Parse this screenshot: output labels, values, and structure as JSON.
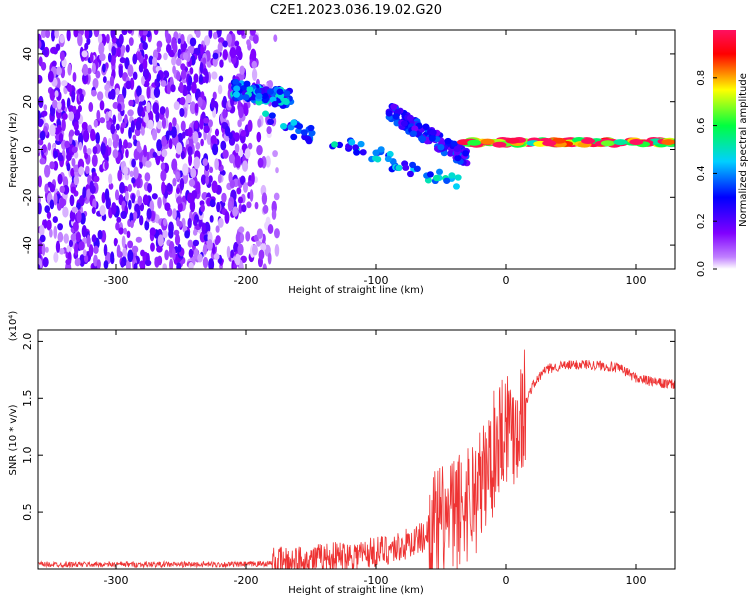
{
  "figure_title": "C2E1.2023.036.19.02.G20",
  "chart_data": [
    {
      "type": "heatmap",
      "title": "C2E1.2023.036.19.02.G20",
      "xlabel": "Height of straight line (km)",
      "ylabel": "Frequency (Hz)",
      "xlim": [
        -360,
        130
      ],
      "ylim": [
        -50,
        50
      ],
      "x_ticks": [
        -300,
        -200,
        -100,
        0,
        100
      ],
      "y_ticks": [
        -40,
        -20,
        0,
        20,
        40
      ],
      "colorbar": {
        "label": "Normalized spectral amplitude",
        "range": [
          0.0,
          1.0
        ],
        "ticks": [
          0.0,
          0.2,
          0.4,
          0.6,
          0.8
        ],
        "colors": [
          "#ffffff",
          "#8000ff",
          "#0000ff",
          "#00e0ff",
          "#00ff40",
          "#ffff00",
          "#ff0000",
          "#ff1060"
        ]
      },
      "features": [
        {
          "x_range": [
            -360,
            -175
          ],
          "frequency_range": [
            -50,
            50
          ],
          "amplitude": 0.1
        },
        {
          "x": [
            -210,
            -165
          ],
          "frequency": [
            25,
            21
          ],
          "amplitude": 0.35
        },
        {
          "x": [
            -185,
            -35
          ],
          "frequency": [
            12,
            -14
          ],
          "amplitude": 0.35
        },
        {
          "x": [
            -90,
            -30
          ],
          "frequency": [
            16,
            -4
          ],
          "amplitude": 0.25
        },
        {
          "x": [
            -35,
            130
          ],
          "frequency": [
            3,
            3
          ],
          "amplitude": 0.8
        }
      ]
    },
    {
      "type": "line",
      "xlabel": "Height of straight line (km)",
      "ylabel": "SNR (10 * v/v)",
      "y_multiplier": "(x10⁴)",
      "xlim": [
        -360,
        130
      ],
      "ylim": [
        0,
        21000
      ],
      "x_ticks": [
        -300,
        -200,
        -100,
        0,
        100
      ],
      "y_ticks": [
        5000,
        10000,
        15000,
        20000
      ],
      "y_tick_labels": [
        "0.5",
        "1.0",
        "1.5",
        "2.0"
      ],
      "series_color": "#ee3333",
      "x": [
        -360,
        -300,
        -250,
        -200,
        -180,
        -150,
        -120,
        -100,
        -80,
        -60,
        -40,
        -30,
        -20,
        -10,
        -5,
        0,
        5,
        10,
        20,
        30,
        40,
        60,
        80,
        90,
        100,
        110,
        120,
        130
      ],
      "y": [
        400,
        400,
        400,
        400,
        500,
        800,
        1200,
        1500,
        2000,
        3000,
        4500,
        6000,
        7000,
        10000,
        12000,
        13000,
        12500,
        13000,
        16000,
        17500,
        17800,
        18000,
        17800,
        17500,
        16800,
        16500,
        16300,
        16200
      ]
    }
  ]
}
